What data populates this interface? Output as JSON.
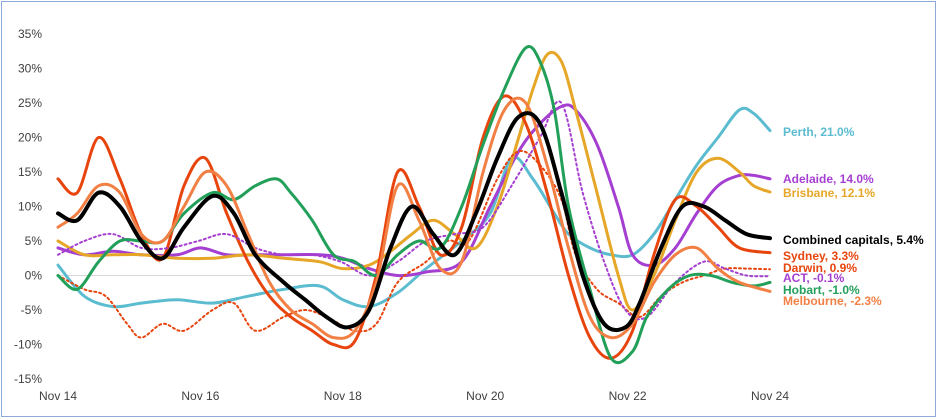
{
  "chart_data": {
    "type": "line",
    "title": "",
    "xlabel": "",
    "ylabel": "",
    "ylim": [
      -15,
      35
    ],
    "yticks": [
      "35%",
      "30%",
      "25%",
      "20%",
      "15%",
      "10%",
      "5%",
      "0%",
      "-5%",
      "-10%",
      "-15%"
    ],
    "ytick_values": [
      35,
      30,
      25,
      20,
      15,
      10,
      5,
      0,
      -5,
      -10,
      -15
    ],
    "xticks": [
      "Nov 14",
      "Nov 16",
      "Nov 18",
      "Nov 20",
      "Nov 22",
      "Nov 24"
    ],
    "xtick_values": [
      2014.83,
      2016.83,
      2018.83,
      2020.83,
      2022.83,
      2024.83
    ],
    "xlim": [
      2014.83,
      2024.83
    ],
    "series": [
      {
        "name": "Perth",
        "label": "Perth, 21.0%",
        "color": "#5bbcd0",
        "dash": false,
        "width": 3,
        "x": [
          2014.83,
          2015.2,
          2015.6,
          2016.0,
          2016.5,
          2017.0,
          2017.5,
          2018.0,
          2018.5,
          2018.83,
          2019.2,
          2019.6,
          2020.0,
          2020.5,
          2020.9,
          2021.2,
          2021.5,
          2021.8,
          2022.0,
          2022.3,
          2022.6,
          2022.9,
          2023.2,
          2023.5,
          2023.8,
          2024.1,
          2024.4,
          2024.6,
          2024.83
        ],
        "y": [
          1.5,
          -3,
          -4.5,
          -4,
          -3.5,
          -4,
          -3,
          -2,
          -1.5,
          -3.5,
          -4.5,
          -2.5,
          1,
          5,
          9,
          17,
          14,
          9,
          6,
          4,
          3,
          3,
          6,
          11,
          16,
          20,
          24,
          23.5,
          21.0
        ]
      },
      {
        "name": "Adelaide",
        "label": "Adelaide, 14.0%",
        "color": "#a53fd1",
        "dash": false,
        "width": 3,
        "x": [
          2014.83,
          2015.2,
          2015.6,
          2016.0,
          2016.5,
          2016.83,
          2017.2,
          2017.6,
          2018.0,
          2018.5,
          2018.83,
          2019.2,
          2019.6,
          2020.0,
          2020.5,
          2020.9,
          2021.3,
          2021.6,
          2021.9,
          2022.1,
          2022.4,
          2022.7,
          2022.9,
          2023.2,
          2023.5,
          2023.8,
          2024.1,
          2024.4,
          2024.6,
          2024.83
        ],
        "y": [
          4,
          3,
          3.5,
          3,
          3,
          4,
          3,
          3,
          3,
          3,
          2.5,
          1,
          0,
          0.5,
          2,
          10,
          18,
          22,
          24.5,
          24,
          19,
          10,
          3,
          1.5,
          4,
          9,
          13,
          14.5,
          14.5,
          14.0
        ]
      },
      {
        "name": "Brisbane",
        "label": "Brisbane, 12.1%",
        "color": "#e6a728",
        "dash": false,
        "width": 3,
        "x": [
          2014.83,
          2015.2,
          2015.6,
          2016.0,
          2016.5,
          2017.0,
          2017.5,
          2018.0,
          2018.5,
          2018.83,
          2019.2,
          2019.5,
          2019.8,
          2020.1,
          2020.4,
          2020.7,
          2021.0,
          2021.3,
          2021.5,
          2021.7,
          2021.9,
          2022.1,
          2022.4,
          2022.7,
          2022.9,
          2023.2,
          2023.5,
          2023.8,
          2024.1,
          2024.4,
          2024.6,
          2024.83
        ],
        "y": [
          5,
          3,
          3,
          3,
          2.5,
          2.5,
          3,
          2.5,
          2,
          1,
          1.5,
          3.5,
          6,
          8,
          6,
          4,
          10,
          20,
          27,
          32,
          31,
          24,
          12,
          0,
          -5,
          0,
          8,
          15,
          17,
          15,
          13,
          12.1
        ]
      },
      {
        "name": "Combined capitals",
        "label": "Combined capitals, 5.4%",
        "color": "#000000",
        "dash": false,
        "width": 4,
        "x": [
          2014.83,
          2015.1,
          2015.4,
          2015.7,
          2016.0,
          2016.3,
          2016.6,
          2017.0,
          2017.3,
          2017.6,
          2018.0,
          2018.3,
          2018.6,
          2018.9,
          2019.2,
          2019.5,
          2019.8,
          2020.1,
          2020.4,
          2020.7,
          2021.0,
          2021.3,
          2021.6,
          2021.9,
          2022.2,
          2022.5,
          2022.8,
          2023.0,
          2023.3,
          2023.6,
          2023.9,
          2024.2,
          2024.5,
          2024.83
        ],
        "y": [
          9,
          8,
          12,
          10,
          5,
          2.5,
          7,
          11.5,
          9,
          3,
          -1,
          -3.5,
          -6,
          -7.5,
          -5,
          4,
          10,
          6,
          3,
          9,
          17,
          23,
          22,
          12,
          0,
          -7,
          -7.5,
          -4,
          4,
          10,
          10,
          8,
          6,
          5.4
        ]
      },
      {
        "name": "Sydney",
        "label": "Sydney, 3.3%",
        "color": "#e8450e",
        "dash": false,
        "width": 3,
        "x": [
          2014.83,
          2015.1,
          2015.4,
          2015.7,
          2016.0,
          2016.3,
          2016.6,
          2016.9,
          2017.2,
          2017.5,
          2017.8,
          2018.1,
          2018.4,
          2018.7,
          2019.0,
          2019.3,
          2019.6,
          2019.9,
          2020.2,
          2020.5,
          2020.8,
          2021.1,
          2021.4,
          2021.7,
          2022.0,
          2022.3,
          2022.6,
          2022.9,
          2023.2,
          2023.5,
          2023.8,
          2024.1,
          2024.4,
          2024.83
        ],
        "y": [
          14,
          12,
          20,
          14,
          6,
          2.5,
          13,
          17,
          9,
          2,
          -3,
          -6,
          -8,
          -10,
          -9.5,
          0,
          15,
          10,
          3,
          7,
          20,
          26,
          22,
          12,
          0,
          -9,
          -12,
          -8,
          3,
          11,
          10,
          7,
          4,
          3.3
        ]
      },
      {
        "name": "Darwin",
        "label": "Darwin, 0.9%",
        "color": "#e8450e",
        "dash": "dotted",
        "width": 2,
        "x": [
          2014.83,
          2015.2,
          2015.5,
          2015.8,
          2016.0,
          2016.3,
          2016.6,
          2017.0,
          2017.3,
          2017.6,
          2018.0,
          2018.3,
          2018.6,
          2019.0,
          2019.3,
          2019.6,
          2020.0,
          2020.3,
          2020.6,
          2021.0,
          2021.3,
          2021.6,
          2021.9,
          2022.1,
          2022.4,
          2022.7,
          2023.0,
          2023.3,
          2023.6,
          2023.9,
          2024.2,
          2024.5,
          2024.83
        ],
        "y": [
          0,
          -2,
          -3,
          -7,
          -9,
          -7,
          -8,
          -5,
          -4,
          -8,
          -6,
          -5,
          -6,
          -8,
          -7,
          -1,
          2,
          5,
          5,
          14,
          18,
          16,
          11,
          3,
          -2,
          -4,
          -6,
          -3,
          -1,
          0,
          1,
          1,
          0.9
        ]
      },
      {
        "name": "ACT",
        "label": "ACT, -0.1%",
        "color": "#a53fd1",
        "dash": "dotted",
        "width": 2,
        "x": [
          2014.83,
          2015.2,
          2015.6,
          2016.0,
          2016.4,
          2016.8,
          2017.2,
          2017.6,
          2018.0,
          2018.4,
          2018.8,
          2019.2,
          2019.6,
          2020.0,
          2020.4,
          2020.8,
          2021.2,
          2021.6,
          2021.9,
          2022.2,
          2022.5,
          2022.8,
          2023.1,
          2023.5,
          2023.9,
          2024.2,
          2024.5,
          2024.83
        ],
        "y": [
          3,
          5,
          6,
          4,
          4,
          5,
          6,
          4,
          3,
          3,
          2,
          0,
          2,
          5,
          6,
          7,
          13,
          20,
          25,
          12,
          2,
          -5,
          -6,
          -1,
          2,
          1,
          0,
          -0.1
        ]
      },
      {
        "name": "Hobart",
        "label": "Hobart, -1.0%",
        "color": "#22a05a",
        "dash": false,
        "width": 3,
        "x": [
          2014.83,
          2015.1,
          2015.4,
          2015.7,
          2016.0,
          2016.3,
          2016.6,
          2017.0,
          2017.3,
          2017.6,
          2017.9,
          2018.1,
          2018.4,
          2018.7,
          2019.0,
          2019.3,
          2019.6,
          2019.9,
          2020.2,
          2020.5,
          2020.8,
          2021.1,
          2021.4,
          2021.6,
          2021.8,
          2022.0,
          2022.3,
          2022.6,
          2022.9,
          2023.1,
          2023.4,
          2023.7,
          2024.0,
          2024.3,
          2024.6,
          2024.83
        ],
        "y": [
          0,
          -2,
          2,
          5,
          5,
          5,
          9,
          12,
          11,
          13,
          14,
          12,
          8,
          3,
          2,
          0,
          3,
          5,
          4,
          10,
          19,
          27,
          33,
          31,
          24,
          10,
          -2,
          -12,
          -11,
          -6,
          -2,
          0,
          0,
          -1,
          -1.5,
          -1.0
        ]
      },
      {
        "name": "Melbourne",
        "label": "Melbourne, -2.3%",
        "color": "#f28044",
        "dash": false,
        "width": 3,
        "x": [
          2014.83,
          2015.1,
          2015.4,
          2015.7,
          2016.0,
          2016.3,
          2016.6,
          2016.9,
          2017.2,
          2017.5,
          2017.8,
          2018.1,
          2018.4,
          2018.7,
          2019.0,
          2019.3,
          2019.6,
          2019.9,
          2020.2,
          2020.5,
          2020.8,
          2021.1,
          2021.4,
          2021.7,
          2022.0,
          2022.3,
          2022.6,
          2022.9,
          2023.2,
          2023.5,
          2023.8,
          2024.1,
          2024.4,
          2024.83
        ],
        "y": [
          7,
          9,
          13,
          12,
          6,
          5,
          10,
          15,
          13,
          6,
          -1,
          -5,
          -7,
          -9,
          -8,
          -1,
          13,
          8,
          1,
          2,
          15,
          24,
          25,
          16,
          4,
          -6,
          -9,
          -7,
          -1,
          3,
          4,
          1,
          -1,
          -2.3
        ]
      }
    ]
  }
}
